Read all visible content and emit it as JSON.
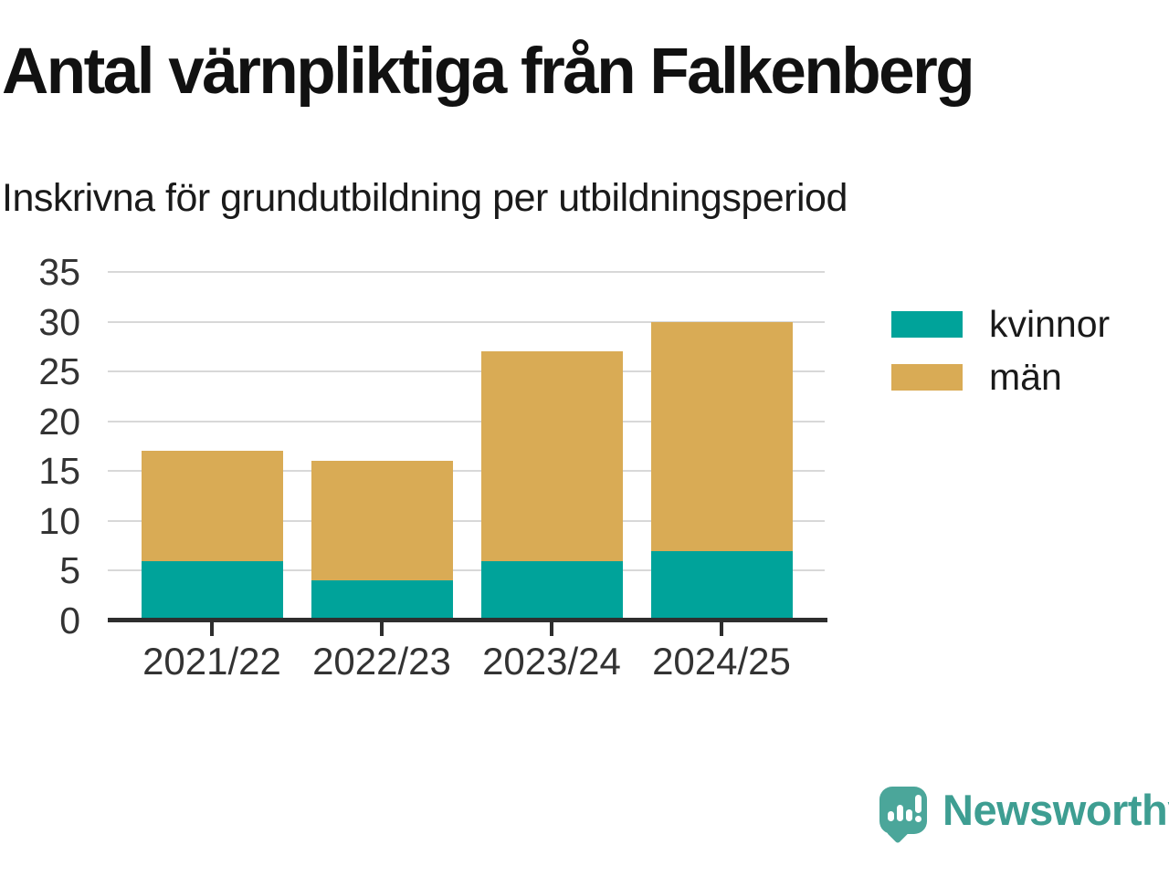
{
  "header": {
    "title": "Antal värnpliktiga från Falkenberg",
    "subtitle": "Inskrivna för grundutbildning per utbildningsperiod"
  },
  "chart_data": {
    "type": "bar",
    "stacked": true,
    "title": "Antal värnpliktiga från Falkenberg",
    "subtitle": "Inskrivna för grundutbildning per utbildningsperiod",
    "categories": [
      "2021/22",
      "2022/23",
      "2023/24",
      "2024/25"
    ],
    "series": [
      {
        "name": "kvinnor",
        "color": "#00a39a",
        "values": [
          6,
          4,
          6,
          7
        ]
      },
      {
        "name": "män",
        "color": "#d9ab55",
        "values": [
          11,
          12,
          21,
          23
        ]
      }
    ],
    "totals": [
      17,
      16,
      27,
      30
    ],
    "xlabel": "",
    "ylabel": "",
    "ylim": [
      0,
      35
    ],
    "yticks": [
      0,
      5,
      10,
      15,
      20,
      25,
      30,
      35
    ],
    "grid": "horizontal",
    "legend_position": "right"
  },
  "legend": {
    "items": [
      {
        "label": "kvinnor",
        "color": "#00a39a"
      },
      {
        "label": "män",
        "color": "#d9ab55"
      }
    ]
  },
  "branding": {
    "logo_text": "Newsworthy",
    "logo_icon_color": "#4ba69a",
    "logo_text_color": "#3e9e92"
  },
  "colors": {
    "background": "#ffffff",
    "grid": "#d8d8d8",
    "axis": "#2e2e2e",
    "title_text": "#111111",
    "tick_text": "#333333"
  }
}
